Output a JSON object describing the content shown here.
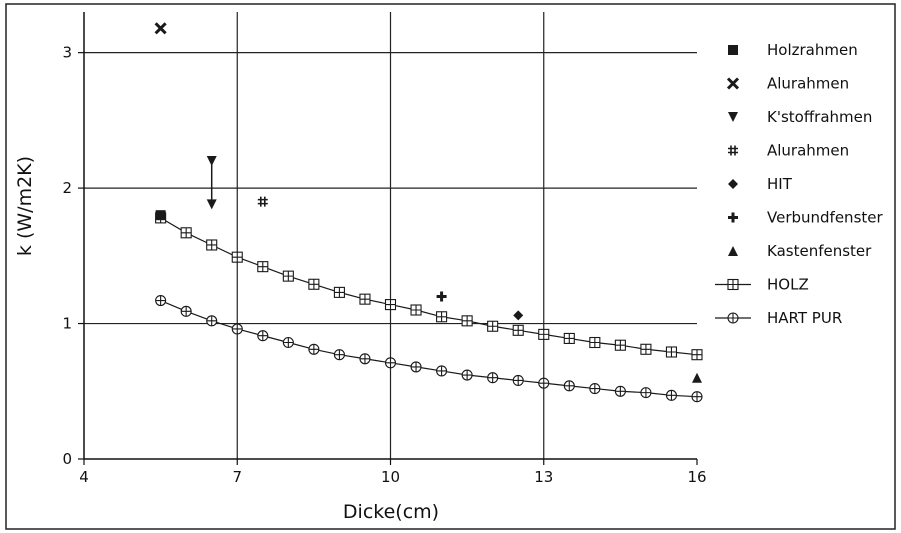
{
  "chart_data": {
    "type": "scatter",
    "xlabel": "Dicke(cm)",
    "ylabel": "k (W/m2K)",
    "xlim": [
      4,
      16
    ],
    "ylim": [
      0,
      3.3
    ],
    "xticks": [
      4,
      7,
      10,
      13,
      16
    ],
    "yticks": [
      0,
      1,
      2,
      3
    ],
    "grid": {
      "horizontal": [
        1,
        2,
        3
      ],
      "vertical": [
        7,
        10,
        13
      ]
    },
    "legend_position": "right",
    "points": [
      {
        "name": "Holzrahmen",
        "marker": "square",
        "points": [
          [
            5.5,
            1.8
          ]
        ]
      },
      {
        "name": "Alurahmen",
        "marker": "x",
        "points": [
          [
            5.5,
            3.18
          ]
        ]
      },
      {
        "name": "K'stoffrahmen",
        "marker": "triangle-down",
        "points": [
          [
            6.5,
            2.2
          ],
          [
            6.5,
            1.88
          ]
        ]
      },
      {
        "name": "Alurahmen",
        "marker": "hash",
        "points": [
          [
            7.5,
            1.9
          ]
        ]
      },
      {
        "name": "HIT",
        "marker": "diamond",
        "points": [
          [
            12.5,
            1.06
          ]
        ]
      },
      {
        "name": "Verbundfenster",
        "marker": "plus",
        "points": [
          [
            11,
            1.2
          ]
        ]
      },
      {
        "name": "Kastenfenster",
        "marker": "triangle-up",
        "points": [
          [
            16,
            0.6
          ]
        ]
      }
    ],
    "series": [
      {
        "name": "HOLZ",
        "marker": "boxed-plus",
        "x": [
          5.5,
          6,
          6.5,
          7,
          7.5,
          8,
          8.5,
          9,
          9.5,
          10,
          10.5,
          11,
          11.5,
          12,
          12.5,
          13,
          13.5,
          14,
          14.5,
          15,
          15.5,
          16
        ],
        "y": [
          1.78,
          1.67,
          1.58,
          1.49,
          1.42,
          1.35,
          1.29,
          1.23,
          1.18,
          1.14,
          1.1,
          1.05,
          1.02,
          0.98,
          0.95,
          0.92,
          0.89,
          0.86,
          0.84,
          0.81,
          0.79,
          0.77
        ]
      },
      {
        "name": "HART PUR",
        "marker": "circle-plus",
        "x": [
          5.5,
          6,
          6.5,
          7,
          7.5,
          8,
          8.5,
          9,
          9.5,
          10,
          10.5,
          11,
          11.5,
          12,
          12.5,
          13,
          13.5,
          14,
          14.5,
          15,
          15.5,
          16
        ],
        "y": [
          1.17,
          1.09,
          1.02,
          0.96,
          0.91,
          0.86,
          0.81,
          0.77,
          0.74,
          0.71,
          0.68,
          0.65,
          0.62,
          0.6,
          0.58,
          0.56,
          0.54,
          0.52,
          0.5,
          0.49,
          0.47,
          0.46
        ]
      }
    ],
    "arrow": {
      "x": 6.5,
      "from": 2.2,
      "to": 1.88
    },
    "colors": {
      "axis": "#111111",
      "marker": "#1a1a1a",
      "background": "#ffffff"
    }
  }
}
